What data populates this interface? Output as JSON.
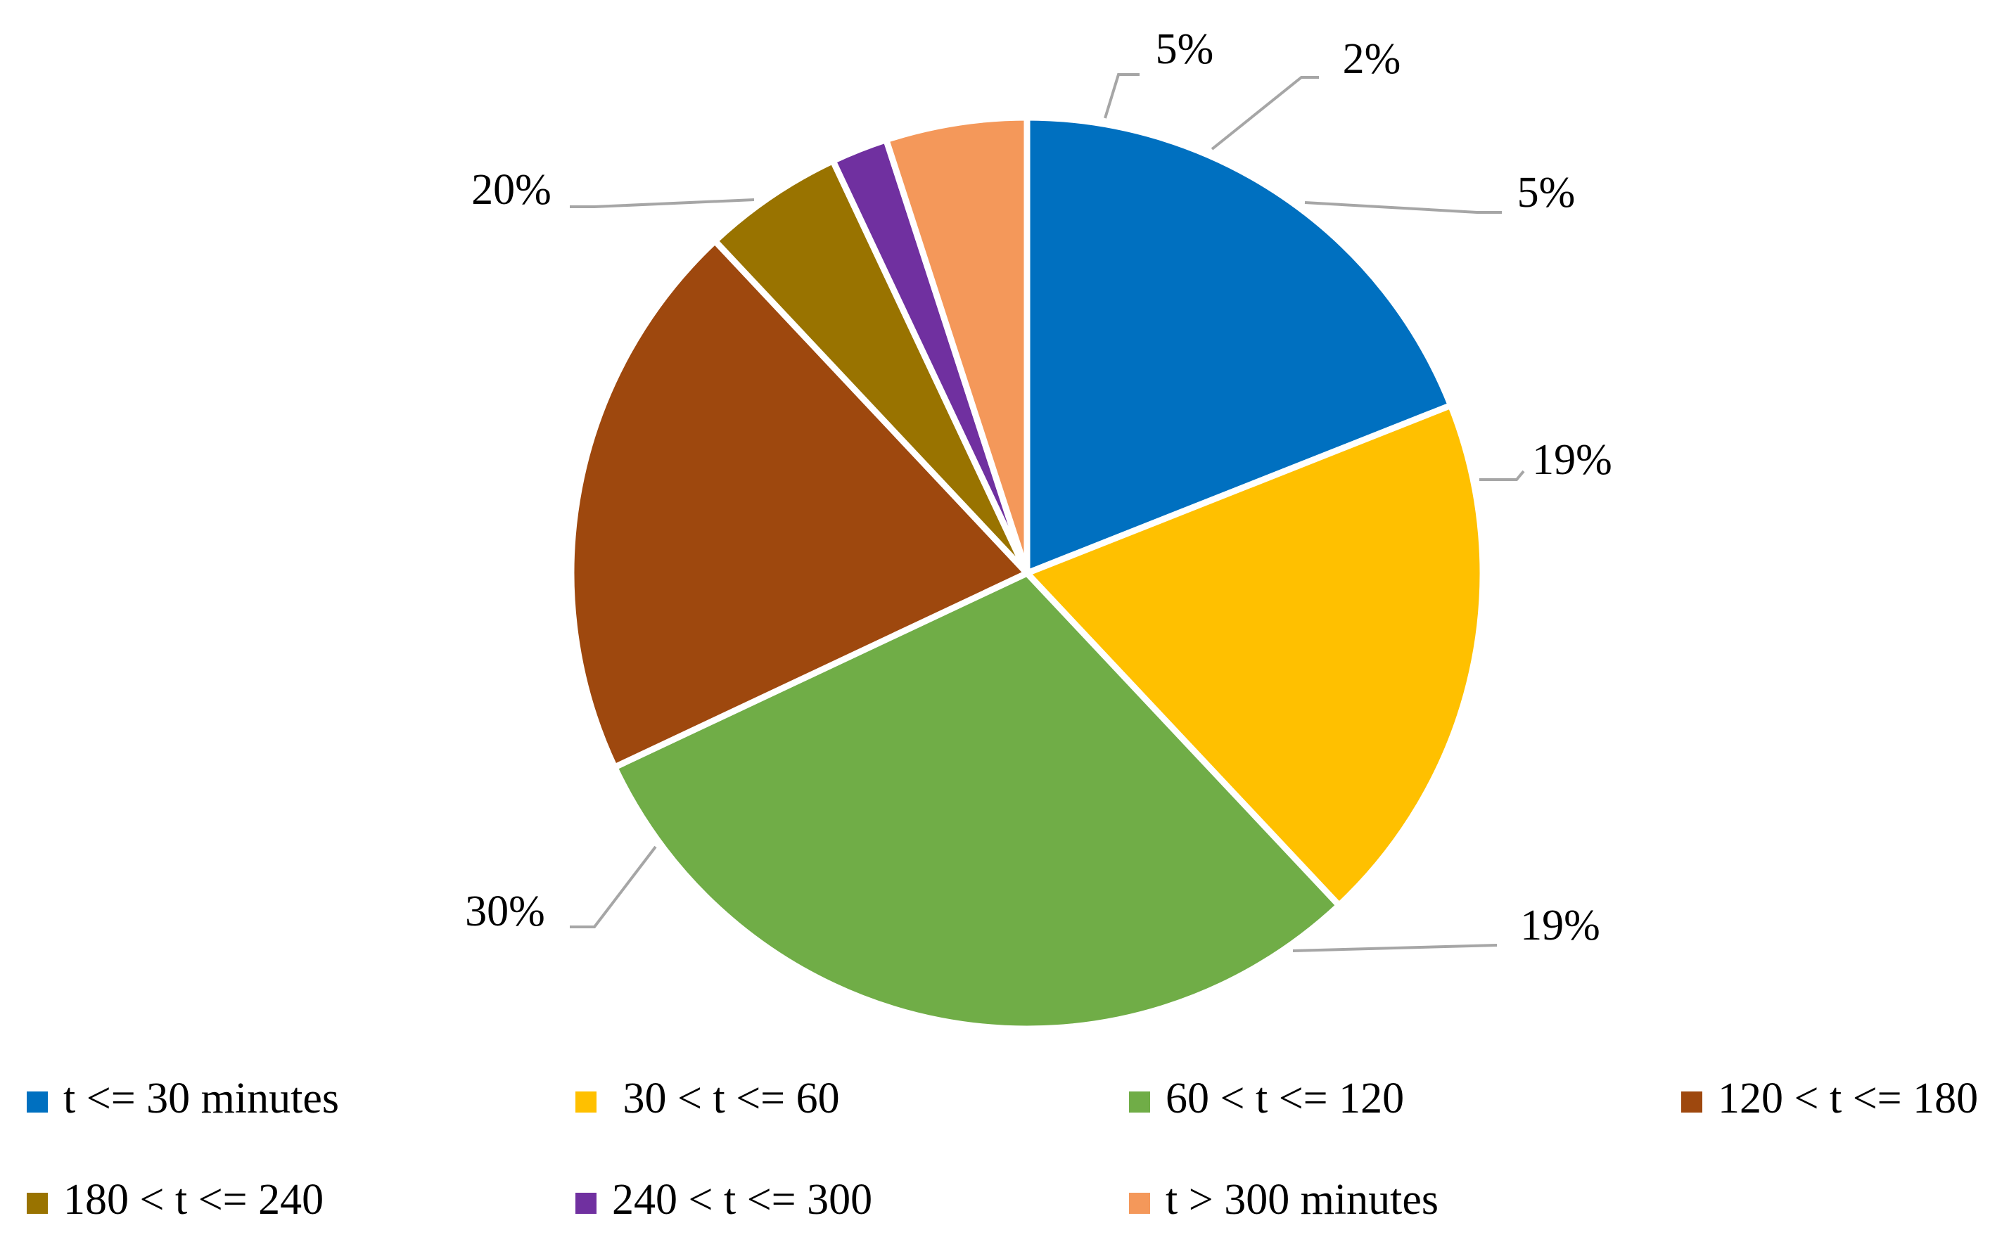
{
  "chart_data": {
    "type": "pie",
    "title": "",
    "start_angle_deg": 0,
    "direction": "clockwise",
    "legend_position": "bottom",
    "slices": [
      {
        "name": "t <= 30 minutes",
        "value": 19,
        "label": "19%",
        "color": "#0070c0"
      },
      {
        "name": " 30 < t <= 60",
        "value": 19,
        "label": "19%",
        "color": "#ffc000"
      },
      {
        "name": "60 < t <= 120",
        "value": 30,
        "label": "30%",
        "color": "#70ad47"
      },
      {
        "name": "120 < t <= 180",
        "value": 20,
        "label": "20%",
        "color": "#9e480e"
      },
      {
        "name": "180 < t <= 240",
        "value": 5,
        "label": "5%",
        "color": "#997300"
      },
      {
        "name": "240 < t <= 300",
        "value": 2,
        "label": "2%",
        "color": "#7030a0"
      },
      {
        "name": "t > 300 minutes",
        "value": 5,
        "label": "5%",
        "color": "#f4985a"
      }
    ]
  }
}
